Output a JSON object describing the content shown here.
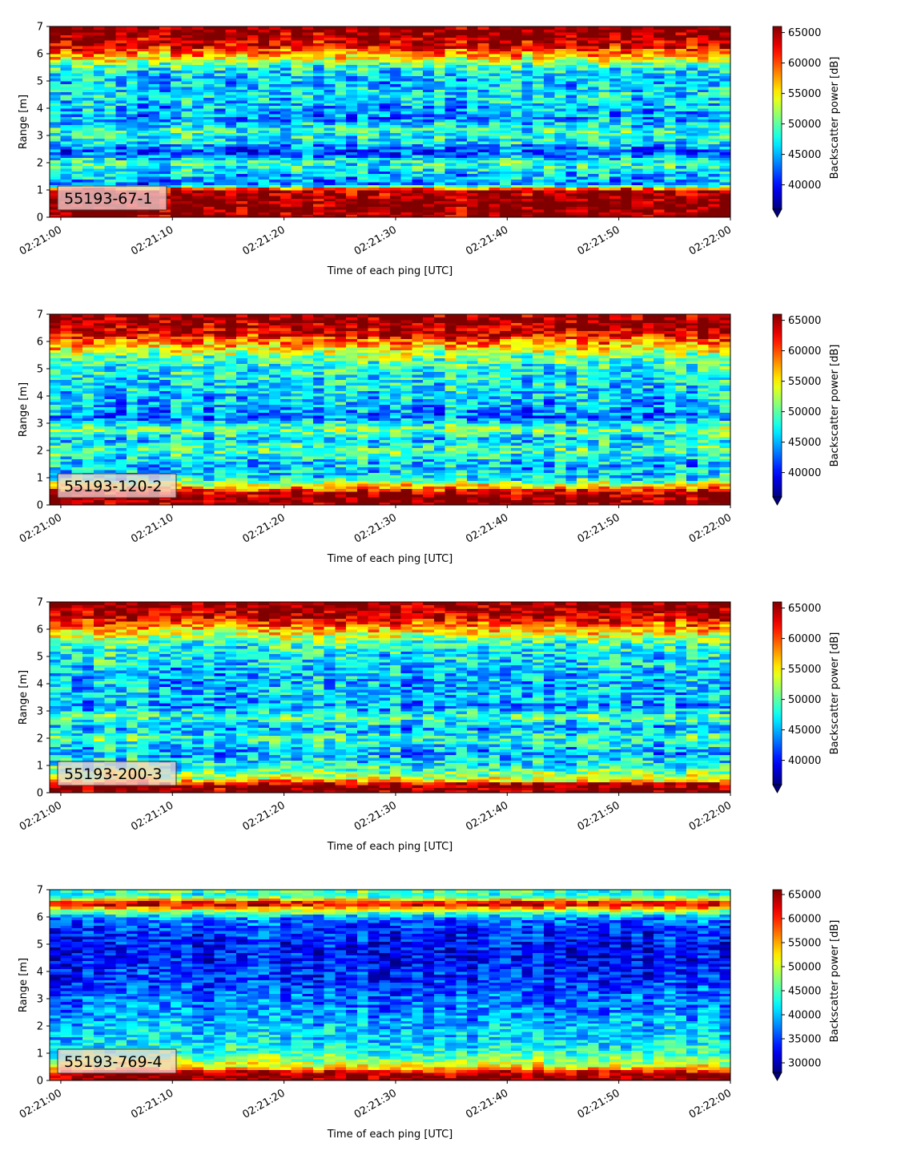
{
  "chart_data": [
    {
      "type": "heatmap",
      "label": "55193-67-1",
      "xlabel": "Time of each ping [UTC]",
      "ylabel": "Range [m]",
      "colorbar_label": "Backscatter power [dB]",
      "colormap": "jet",
      "xticks": [
        "02:21:00",
        "02:21:10",
        "02:21:20",
        "02:21:30",
        "02:21:40",
        "02:21:50",
        "02:22:00"
      ],
      "yticks": [
        0,
        1,
        2,
        3,
        4,
        5,
        6,
        7
      ],
      "xlim": [
        "02:20:59",
        "02:22:00"
      ],
      "ylim": [
        0,
        7
      ],
      "color_range": [
        36000,
        66000
      ],
      "colorbar_ticks": [
        40000,
        45000,
        50000,
        55000,
        60000,
        65000
      ],
      "colorbar_extend": "min",
      "mean_profile": [
        {
          "range": 0.1,
          "value": 66000
        },
        {
          "range": 0.6,
          "value": 66000
        },
        {
          "range": 1.0,
          "value": 65000
        },
        {
          "range": 1.2,
          "value": 43000
        },
        {
          "range": 1.5,
          "value": 45000
        },
        {
          "range": 2.0,
          "value": 49000
        },
        {
          "range": 2.4,
          "value": 41000
        },
        {
          "range": 2.8,
          "value": 47000
        },
        {
          "range": 3.2,
          "value": 49000
        },
        {
          "range": 3.6,
          "value": 44000
        },
        {
          "range": 4.0,
          "value": 45000
        },
        {
          "range": 4.5,
          "value": 47000
        },
        {
          "range": 5.0,
          "value": 45000
        },
        {
          "range": 5.5,
          "value": 48000
        },
        {
          "range": 6.0,
          "value": 58000
        },
        {
          "range": 6.3,
          "value": 63000
        },
        {
          "range": 6.7,
          "value": 66000
        },
        {
          "range": 7.0,
          "value": 66000
        }
      ]
    },
    {
      "type": "heatmap",
      "label": "55193-120-2",
      "xlabel": "Time of each ping [UTC]",
      "ylabel": "Range [m]",
      "colorbar_label": "Backscatter power [dB]",
      "colormap": "jet",
      "xticks": [
        "02:21:00",
        "02:21:10",
        "02:21:20",
        "02:21:30",
        "02:21:40",
        "02:21:50",
        "02:22:00"
      ],
      "yticks": [
        0,
        1,
        2,
        3,
        4,
        5,
        6,
        7
      ],
      "xlim": [
        "02:20:59",
        "02:22:00"
      ],
      "ylim": [
        0,
        7
      ],
      "color_range": [
        36000,
        66000
      ],
      "colorbar_ticks": [
        40000,
        45000,
        50000,
        55000,
        60000,
        65000
      ],
      "colorbar_extend": "min",
      "mean_profile": [
        {
          "range": 0.1,
          "value": 66000
        },
        {
          "range": 0.4,
          "value": 66000
        },
        {
          "range": 0.7,
          "value": 56000
        },
        {
          "range": 1.0,
          "value": 47000
        },
        {
          "range": 1.5,
          "value": 45000
        },
        {
          "range": 2.0,
          "value": 50000
        },
        {
          "range": 2.4,
          "value": 46000
        },
        {
          "range": 2.8,
          "value": 51000
        },
        {
          "range": 3.2,
          "value": 43000
        },
        {
          "range": 3.6,
          "value": 45000
        },
        {
          "range": 4.0,
          "value": 46000
        },
        {
          "range": 4.5,
          "value": 47000
        },
        {
          "range": 5.0,
          "value": 48000
        },
        {
          "range": 5.5,
          "value": 51000
        },
        {
          "range": 6.0,
          "value": 59000
        },
        {
          "range": 6.4,
          "value": 64000
        },
        {
          "range": 6.8,
          "value": 66000
        },
        {
          "range": 7.0,
          "value": 66000
        }
      ]
    },
    {
      "type": "heatmap",
      "label": "55193-200-3",
      "xlabel": "Time of each ping [UTC]",
      "ylabel": "Range [m]",
      "colorbar_label": "Backscatter power [dB]",
      "colormap": "jet",
      "xticks": [
        "02:21:00",
        "02:21:10",
        "02:21:20",
        "02:21:30",
        "02:21:40",
        "02:21:50",
        "02:22:00"
      ],
      "yticks": [
        0,
        1,
        2,
        3,
        4,
        5,
        6,
        7
      ],
      "xlim": [
        "02:20:59",
        "02:22:00"
      ],
      "ylim": [
        0,
        7
      ],
      "color_range": [
        36000,
        66000
      ],
      "colorbar_ticks": [
        40000,
        45000,
        50000,
        55000,
        60000,
        65000
      ],
      "colorbar_extend": "min",
      "mean_profile": [
        {
          "range": 0.1,
          "value": 66000
        },
        {
          "range": 0.3,
          "value": 66000
        },
        {
          "range": 0.5,
          "value": 54000
        },
        {
          "range": 1.0,
          "value": 48000
        },
        {
          "range": 1.5,
          "value": 45000
        },
        {
          "range": 2.0,
          "value": 49000
        },
        {
          "range": 2.4,
          "value": 45000
        },
        {
          "range": 2.8,
          "value": 50000
        },
        {
          "range": 3.2,
          "value": 44000
        },
        {
          "range": 3.6,
          "value": 46000
        },
        {
          "range": 4.0,
          "value": 45000
        },
        {
          "range": 4.5,
          "value": 46000
        },
        {
          "range": 5.0,
          "value": 47000
        },
        {
          "range": 5.5,
          "value": 49000
        },
        {
          "range": 6.0,
          "value": 57000
        },
        {
          "range": 6.4,
          "value": 63000
        },
        {
          "range": 6.8,
          "value": 66000
        },
        {
          "range": 7.0,
          "value": 66000
        }
      ]
    },
    {
      "type": "heatmap",
      "label": "55193-769-4",
      "xlabel": "Time of each ping [UTC]",
      "ylabel": "Range [m]",
      "colorbar_label": "Backscatter power [dB]",
      "colormap": "jet",
      "xticks": [
        "02:21:00",
        "02:21:10",
        "02:21:20",
        "02:21:30",
        "02:21:40",
        "02:21:50",
        "02:22:00"
      ],
      "yticks": [
        0,
        1,
        2,
        3,
        4,
        5,
        6,
        7
      ],
      "xlim": [
        "02:20:59",
        "02:22:00"
      ],
      "ylim": [
        0,
        7
      ],
      "color_range": [
        28000,
        66000
      ],
      "colorbar_ticks": [
        30000,
        35000,
        40000,
        45000,
        50000,
        55000,
        60000,
        65000
      ],
      "colorbar_extend": "min",
      "mean_profile": [
        {
          "range": 0.1,
          "value": 66000
        },
        {
          "range": 0.3,
          "value": 64000
        },
        {
          "range": 0.5,
          "value": 52000
        },
        {
          "range": 1.0,
          "value": 44000
        },
        {
          "range": 1.5,
          "value": 41000
        },
        {
          "range": 2.0,
          "value": 40000
        },
        {
          "range": 2.5,
          "value": 38000
        },
        {
          "range": 3.0,
          "value": 37000
        },
        {
          "range": 3.5,
          "value": 35000
        },
        {
          "range": 4.0,
          "value": 34000
        },
        {
          "range": 4.5,
          "value": 33000
        },
        {
          "range": 5.0,
          "value": 33000
        },
        {
          "range": 5.5,
          "value": 34000
        },
        {
          "range": 6.0,
          "value": 38000
        },
        {
          "range": 6.3,
          "value": 52000
        },
        {
          "range": 6.5,
          "value": 64000
        },
        {
          "range": 6.8,
          "value": 42000
        },
        {
          "range": 7.0,
          "value": 46000
        }
      ]
    }
  ]
}
